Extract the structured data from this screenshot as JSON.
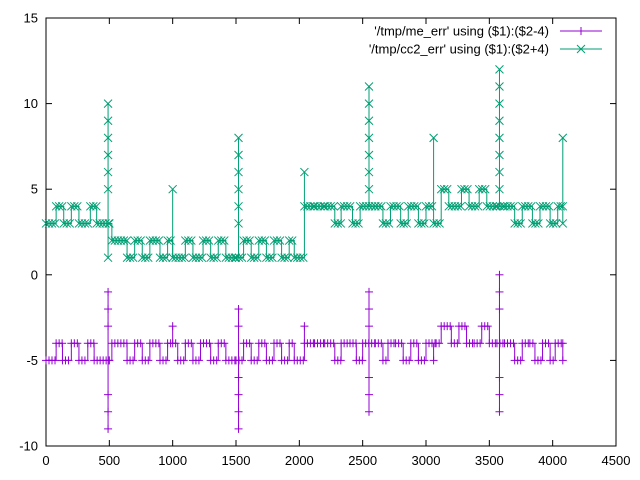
{
  "chart_data": {
    "type": "line",
    "title": "",
    "xlabel": "",
    "ylabel": "",
    "xlim": [
      0,
      4500
    ],
    "ylim": [
      -10,
      15
    ],
    "x_ticks": [
      0,
      500,
      1000,
      1500,
      2000,
      2500,
      3000,
      3500,
      4000,
      4500
    ],
    "y_ticks": [
      -10,
      -5,
      0,
      5,
      10,
      15
    ],
    "x_tick_labels": [
      "0",
      "500",
      "1000",
      "1500",
      "2000",
      "2500",
      "3000",
      "3500",
      "4000",
      "4500"
    ],
    "y_tick_labels": [
      "-10",
      "-5",
      "0",
      "5",
      "10",
      "15"
    ],
    "grid": false,
    "legend_position": "top-right",
    "series": [
      {
        "name": "'/tmp/me_err' using ($1):($2-4)",
        "color": "#9400d3",
        "marker": "plus",
        "baseline": [
          [
            0,
            -5
          ],
          [
            80,
            -4
          ],
          [
            130,
            -5
          ],
          [
            200,
            -4
          ],
          [
            260,
            -5
          ],
          [
            330,
            -4
          ],
          [
            380,
            -5
          ],
          [
            500,
            -5
          ],
          [
            520,
            -4
          ],
          [
            640,
            -5
          ],
          [
            700,
            -4
          ],
          [
            760,
            -5
          ],
          [
            820,
            -4
          ],
          [
            900,
            -5
          ],
          [
            960,
            -4
          ],
          [
            1000,
            -4
          ],
          [
            1040,
            -5
          ],
          [
            1100,
            -4
          ],
          [
            1160,
            -5
          ],
          [
            1220,
            -4
          ],
          [
            1300,
            -5
          ],
          [
            1360,
            -4
          ],
          [
            1420,
            -5
          ],
          [
            1500,
            -5
          ],
          [
            1560,
            -4
          ],
          [
            1620,
            -5
          ],
          [
            1680,
            -4
          ],
          [
            1740,
            -5
          ],
          [
            1800,
            -4
          ],
          [
            1860,
            -5
          ],
          [
            1920,
            -4
          ],
          [
            1960,
            -5
          ],
          [
            2040,
            -4
          ],
          [
            2120,
            -4
          ],
          [
            2200,
            -4
          ],
          [
            2280,
            -5
          ],
          [
            2330,
            -4
          ],
          [
            2400,
            -4
          ],
          [
            2450,
            -5
          ],
          [
            2500,
            -4
          ],
          [
            2600,
            -4
          ],
          [
            2660,
            -5
          ],
          [
            2700,
            -4
          ],
          [
            2760,
            -4
          ],
          [
            2820,
            -5
          ],
          [
            2880,
            -4
          ],
          [
            2940,
            -5
          ],
          [
            3000,
            -4
          ],
          [
            3080,
            -4
          ],
          [
            3120,
            -3
          ],
          [
            3200,
            -4
          ],
          [
            3260,
            -3
          ],
          [
            3320,
            -4
          ],
          [
            3380,
            -4
          ],
          [
            3440,
            -3
          ],
          [
            3500,
            -4
          ],
          [
            3560,
            -4
          ],
          [
            3620,
            -4
          ],
          [
            3700,
            -5
          ],
          [
            3760,
            -4
          ],
          [
            3820,
            -4
          ],
          [
            3860,
            -5
          ],
          [
            3920,
            -4
          ],
          [
            3980,
            -5
          ],
          [
            4020,
            -4
          ],
          [
            4080,
            -4
          ]
        ],
        "spikes": [
          {
            "x": 490,
            "base": -5,
            "values": [
              -1,
              -2,
              -3,
              -7,
              -8,
              -9
            ]
          },
          {
            "x": 1000,
            "base": -4,
            "values": [
              -3
            ]
          },
          {
            "x": 1520,
            "base": -5,
            "values": [
              -2,
              -3,
              -6,
              -7,
              -8,
              -9
            ]
          },
          {
            "x": 2040,
            "base": -4,
            "values": [
              -3
            ]
          },
          {
            "x": 2550,
            "base": -4,
            "values": [
              -1,
              -2,
              -3,
              -6,
              -7,
              -8
            ]
          },
          {
            "x": 3060,
            "base": -4,
            "values": [
              -5
            ]
          },
          {
            "x": 3580,
            "base": -4,
            "values": [
              0,
              -1,
              -2,
              -6,
              -7,
              -8
            ]
          },
          {
            "x": 4080,
            "base": -4,
            "values": [
              -5
            ]
          }
        ]
      },
      {
        "name": "'/tmp/cc2_err' using ($1):($2+4)",
        "color": "#009e73",
        "marker": "cross",
        "baseline": [
          [
            0,
            3
          ],
          [
            80,
            4
          ],
          [
            140,
            3
          ],
          [
            200,
            4
          ],
          [
            260,
            3
          ],
          [
            350,
            4
          ],
          [
            400,
            3
          ],
          [
            500,
            3
          ],
          [
            520,
            2
          ],
          [
            640,
            1
          ],
          [
            700,
            2
          ],
          [
            760,
            1
          ],
          [
            820,
            2
          ],
          [
            900,
            1
          ],
          [
            960,
            2
          ],
          [
            1000,
            1
          ],
          [
            1100,
            2
          ],
          [
            1160,
            1
          ],
          [
            1240,
            2
          ],
          [
            1300,
            1
          ],
          [
            1360,
            2
          ],
          [
            1420,
            1
          ],
          [
            1500,
            1
          ],
          [
            1560,
            2
          ],
          [
            1620,
            1
          ],
          [
            1680,
            2
          ],
          [
            1740,
            1
          ],
          [
            1800,
            2
          ],
          [
            1860,
            1
          ],
          [
            1920,
            2
          ],
          [
            1960,
            1
          ],
          [
            2040,
            4
          ],
          [
            2120,
            4
          ],
          [
            2200,
            4
          ],
          [
            2280,
            3
          ],
          [
            2330,
            4
          ],
          [
            2420,
            3
          ],
          [
            2480,
            4
          ],
          [
            2600,
            4
          ],
          [
            2660,
            3
          ],
          [
            2720,
            4
          ],
          [
            2800,
            3
          ],
          [
            2860,
            4
          ],
          [
            2940,
            3
          ],
          [
            3000,
            4
          ],
          [
            3060,
            3
          ],
          [
            3120,
            5
          ],
          [
            3180,
            4
          ],
          [
            3280,
            5
          ],
          [
            3340,
            4
          ],
          [
            3420,
            5
          ],
          [
            3480,
            4
          ],
          [
            3560,
            4
          ],
          [
            3620,
            4
          ],
          [
            3700,
            3
          ],
          [
            3760,
            4
          ],
          [
            3840,
            3
          ],
          [
            3900,
            4
          ],
          [
            3980,
            3
          ],
          [
            4040,
            4
          ],
          [
            4080,
            4
          ]
        ],
        "spikes": [
          {
            "x": 490,
            "base": 3,
            "values": [
              10,
              9,
              8,
              7,
              6,
              5,
              1
            ]
          },
          {
            "x": 1000,
            "base": 1,
            "values": [
              5
            ]
          },
          {
            "x": 1520,
            "base": 1,
            "values": [
              8,
              7,
              6,
              5,
              4,
              3
            ]
          },
          {
            "x": 2040,
            "base": 4,
            "values": [
              6
            ]
          },
          {
            "x": 2550,
            "base": 4,
            "values": [
              11,
              10,
              9,
              8,
              7,
              6,
              5
            ]
          },
          {
            "x": 3060,
            "base": 4,
            "values": [
              8
            ]
          },
          {
            "x": 3580,
            "base": 4,
            "values": [
              12,
              11,
              10,
              9,
              8,
              7,
              6,
              5
            ]
          },
          {
            "x": 4080,
            "base": 4,
            "values": [
              8,
              3
            ]
          }
        ]
      }
    ]
  }
}
